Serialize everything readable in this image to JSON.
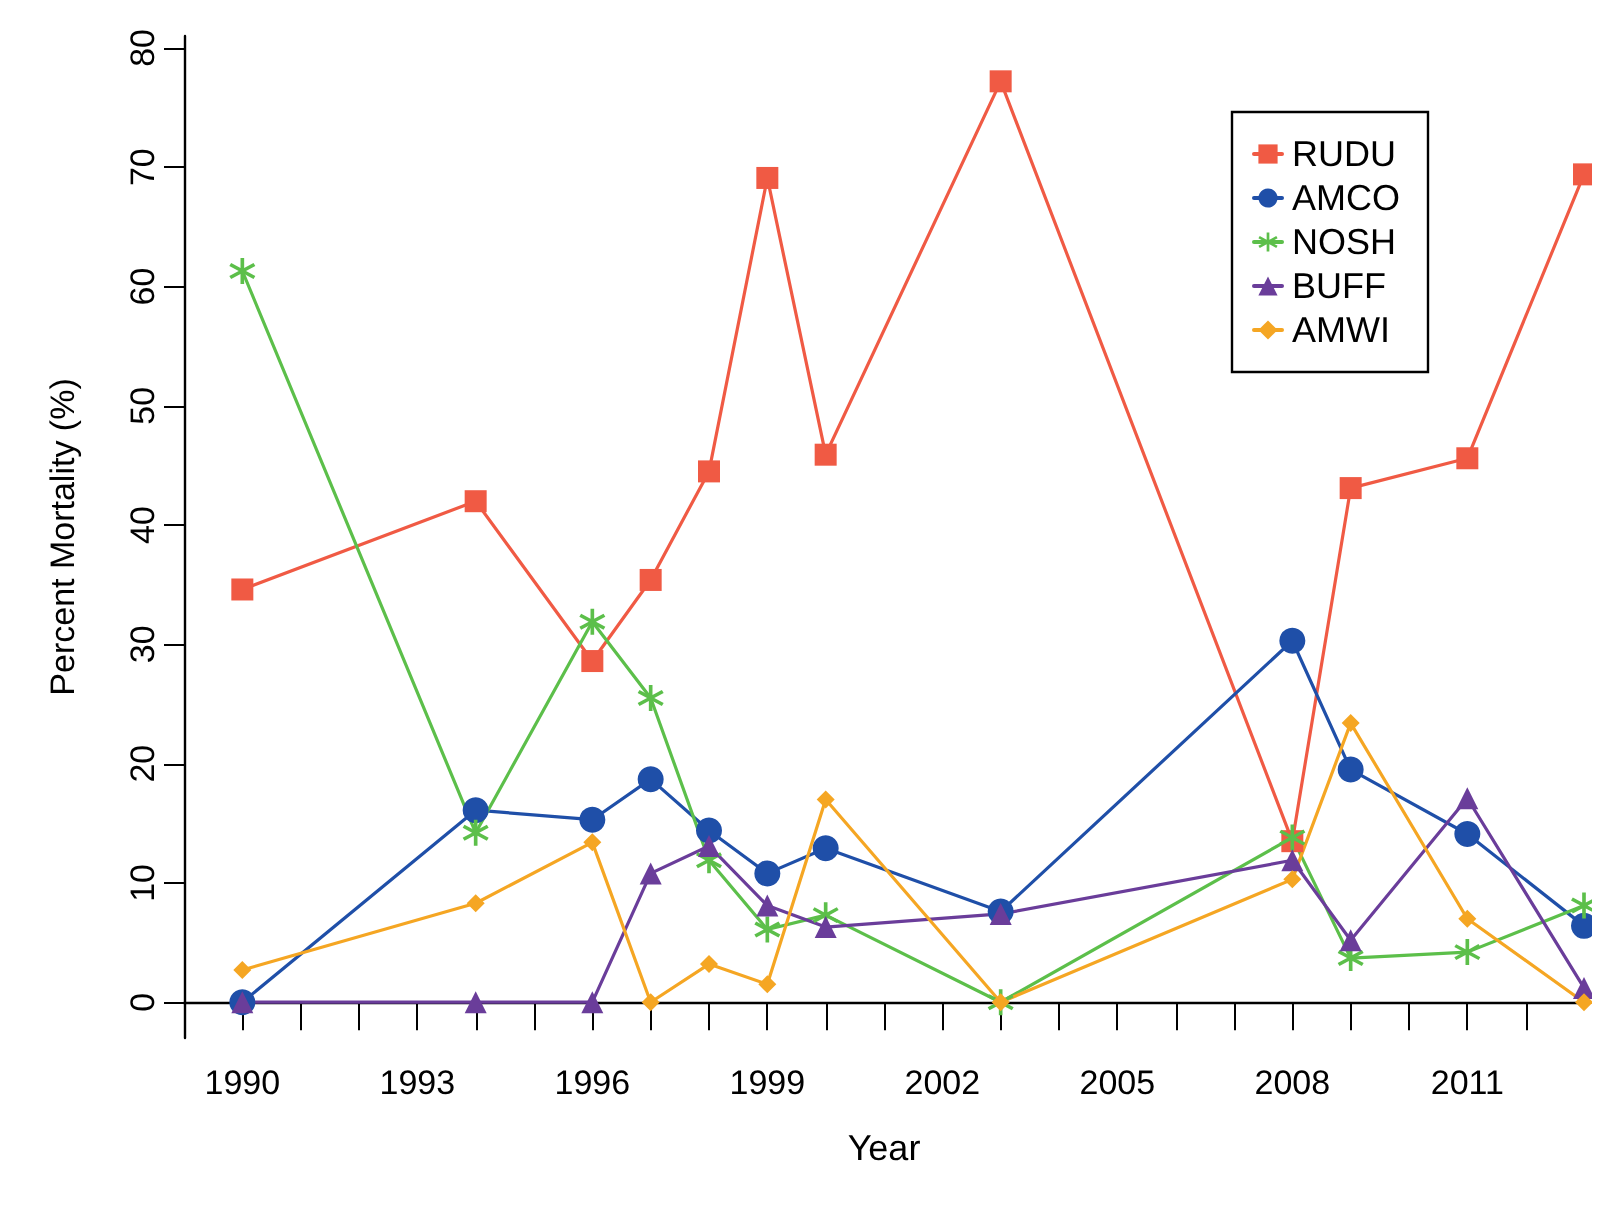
{
  "chart_data": {
    "type": "line",
    "xlabel": "Year",
    "ylabel": "Percent Mortality (%)",
    "x": [
      1990,
      1994,
      1996,
      1997,
      1998,
      1999,
      2000,
      2003,
      2008,
      2009,
      2011,
      2013
    ],
    "series": [
      {
        "name": "RUDU",
        "color": "#f05a44",
        "marker": "square",
        "values": [
          34.6,
          42.0,
          28.6,
          35.4,
          44.5,
          69.1,
          45.9,
          77.2,
          13.5,
          43.1,
          45.6,
          69.4
        ]
      },
      {
        "name": "AMCO",
        "color": "#1f4fa8",
        "marker": "circle",
        "values": [
          0,
          16.1,
          15.3,
          18.7,
          14.4,
          10.8,
          12.9,
          7.6,
          30.3,
          19.5,
          14.1,
          6.4
        ]
      },
      {
        "name": "NOSH",
        "color": "#5cbf4a",
        "marker": "star",
        "values": [
          61.3,
          14.2,
          31.9,
          25.5,
          11.9,
          6.1,
          7.3,
          0,
          13.8,
          3.7,
          4.2,
          8.1
        ]
      },
      {
        "name": "BUFF",
        "color": "#6a3d9a",
        "marker": "triangle",
        "values": [
          0,
          0,
          0,
          10.8,
          13.1,
          8.1,
          6.3,
          7.4,
          11.9,
          5.2,
          17.1,
          1.2
        ]
      },
      {
        "name": "AMWI",
        "color": "#f5a623",
        "marker": "diamond",
        "values": [
          2.7,
          8.3,
          13.4,
          0,
          3.2,
          1.5,
          17.0,
          0,
          10.3,
          23.4,
          7.0,
          0
        ]
      }
    ],
    "xlim": [
      1989,
      2013
    ],
    "xticks": [
      1990,
      {
        "value": 1991,
        "label": null
      },
      {
        "value": 1992,
        "label": null
      },
      1993,
      {
        "value": 1994,
        "label": null
      },
      {
        "value": 1995,
        "label": null
      },
      1996,
      {
        "value": 1997,
        "label": null
      },
      {
        "value": 1998,
        "label": null
      },
      1999,
      {
        "value": 2000,
        "label": null
      },
      {
        "value": 2001,
        "label": null
      },
      2002,
      {
        "value": 2003,
        "label": null
      },
      {
        "value": 2004,
        "label": null
      },
      2005,
      {
        "value": 2006,
        "label": null
      },
      {
        "value": 2007,
        "label": null
      },
      2008,
      {
        "value": 2009,
        "label": null
      },
      {
        "value": 2010,
        "label": null
      },
      2011,
      {
        "value": 2012,
        "label": null
      }
    ],
    "ylim": [
      -3,
      81
    ],
    "yticks": [
      0,
      10,
      20,
      30,
      40,
      50,
      60,
      70,
      80
    ],
    "grid": false,
    "legend": "top right",
    "line_style": "solid"
  }
}
